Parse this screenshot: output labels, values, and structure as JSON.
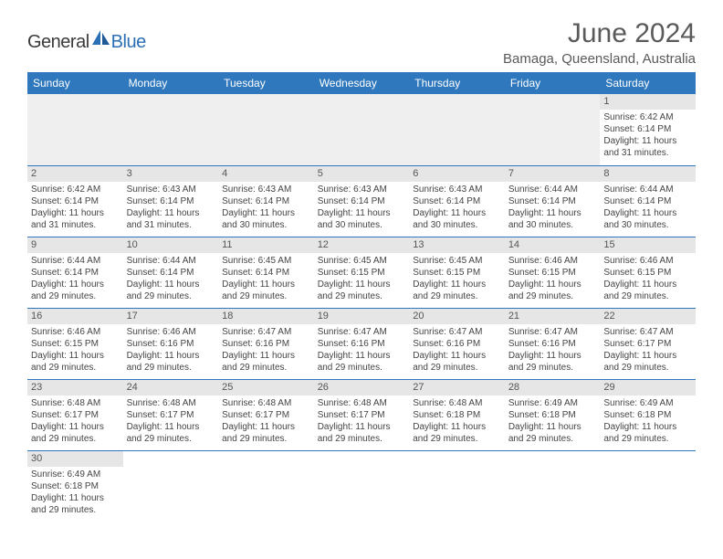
{
  "logo": {
    "text_dark": "General",
    "text_blue": "Blue"
  },
  "title": "June 2024",
  "location": "Bamaga, Queensland, Australia",
  "colors": {
    "header_bg": "#2f78bd",
    "header_text": "#ffffff",
    "daynum_bg": "#e6e6e6",
    "daynum_text": "#555555",
    "body_text": "#444444",
    "rule": "#2f78bd",
    "title_text": "#5a5a5a"
  },
  "day_headers": [
    "Sunday",
    "Monday",
    "Tuesday",
    "Wednesday",
    "Thursday",
    "Friday",
    "Saturday"
  ],
  "weeks": [
    [
      null,
      null,
      null,
      null,
      null,
      null,
      {
        "n": "1",
        "sr": "6:42 AM",
        "ss": "6:14 PM",
        "dl": "11 hours and 31 minutes."
      }
    ],
    [
      {
        "n": "2",
        "sr": "6:42 AM",
        "ss": "6:14 PM",
        "dl": "11 hours and 31 minutes."
      },
      {
        "n": "3",
        "sr": "6:43 AM",
        "ss": "6:14 PM",
        "dl": "11 hours and 31 minutes."
      },
      {
        "n": "4",
        "sr": "6:43 AM",
        "ss": "6:14 PM",
        "dl": "11 hours and 30 minutes."
      },
      {
        "n": "5",
        "sr": "6:43 AM",
        "ss": "6:14 PM",
        "dl": "11 hours and 30 minutes."
      },
      {
        "n": "6",
        "sr": "6:43 AM",
        "ss": "6:14 PM",
        "dl": "11 hours and 30 minutes."
      },
      {
        "n": "7",
        "sr": "6:44 AM",
        "ss": "6:14 PM",
        "dl": "11 hours and 30 minutes."
      },
      {
        "n": "8",
        "sr": "6:44 AM",
        "ss": "6:14 PM",
        "dl": "11 hours and 30 minutes."
      }
    ],
    [
      {
        "n": "9",
        "sr": "6:44 AM",
        "ss": "6:14 PM",
        "dl": "11 hours and 29 minutes."
      },
      {
        "n": "10",
        "sr": "6:44 AM",
        "ss": "6:14 PM",
        "dl": "11 hours and 29 minutes."
      },
      {
        "n": "11",
        "sr": "6:45 AM",
        "ss": "6:14 PM",
        "dl": "11 hours and 29 minutes."
      },
      {
        "n": "12",
        "sr": "6:45 AM",
        "ss": "6:15 PM",
        "dl": "11 hours and 29 minutes."
      },
      {
        "n": "13",
        "sr": "6:45 AM",
        "ss": "6:15 PM",
        "dl": "11 hours and 29 minutes."
      },
      {
        "n": "14",
        "sr": "6:46 AM",
        "ss": "6:15 PM",
        "dl": "11 hours and 29 minutes."
      },
      {
        "n": "15",
        "sr": "6:46 AM",
        "ss": "6:15 PM",
        "dl": "11 hours and 29 minutes."
      }
    ],
    [
      {
        "n": "16",
        "sr": "6:46 AM",
        "ss": "6:15 PM",
        "dl": "11 hours and 29 minutes."
      },
      {
        "n": "17",
        "sr": "6:46 AM",
        "ss": "6:16 PM",
        "dl": "11 hours and 29 minutes."
      },
      {
        "n": "18",
        "sr": "6:47 AM",
        "ss": "6:16 PM",
        "dl": "11 hours and 29 minutes."
      },
      {
        "n": "19",
        "sr": "6:47 AM",
        "ss": "6:16 PM",
        "dl": "11 hours and 29 minutes."
      },
      {
        "n": "20",
        "sr": "6:47 AM",
        "ss": "6:16 PM",
        "dl": "11 hours and 29 minutes."
      },
      {
        "n": "21",
        "sr": "6:47 AM",
        "ss": "6:16 PM",
        "dl": "11 hours and 29 minutes."
      },
      {
        "n": "22",
        "sr": "6:47 AM",
        "ss": "6:17 PM",
        "dl": "11 hours and 29 minutes."
      }
    ],
    [
      {
        "n": "23",
        "sr": "6:48 AM",
        "ss": "6:17 PM",
        "dl": "11 hours and 29 minutes."
      },
      {
        "n": "24",
        "sr": "6:48 AM",
        "ss": "6:17 PM",
        "dl": "11 hours and 29 minutes."
      },
      {
        "n": "25",
        "sr": "6:48 AM",
        "ss": "6:17 PM",
        "dl": "11 hours and 29 minutes."
      },
      {
        "n": "26",
        "sr": "6:48 AM",
        "ss": "6:17 PM",
        "dl": "11 hours and 29 minutes."
      },
      {
        "n": "27",
        "sr": "6:48 AM",
        "ss": "6:18 PM",
        "dl": "11 hours and 29 minutes."
      },
      {
        "n": "28",
        "sr": "6:49 AM",
        "ss": "6:18 PM",
        "dl": "11 hours and 29 minutes."
      },
      {
        "n": "29",
        "sr": "6:49 AM",
        "ss": "6:18 PM",
        "dl": "11 hours and 29 minutes."
      }
    ],
    [
      {
        "n": "30",
        "sr": "6:49 AM",
        "ss": "6:18 PM",
        "dl": "11 hours and 29 minutes."
      },
      null,
      null,
      null,
      null,
      null,
      null
    ]
  ],
  "labels": {
    "sunrise": "Sunrise:",
    "sunset": "Sunset:",
    "daylight": "Daylight:"
  }
}
